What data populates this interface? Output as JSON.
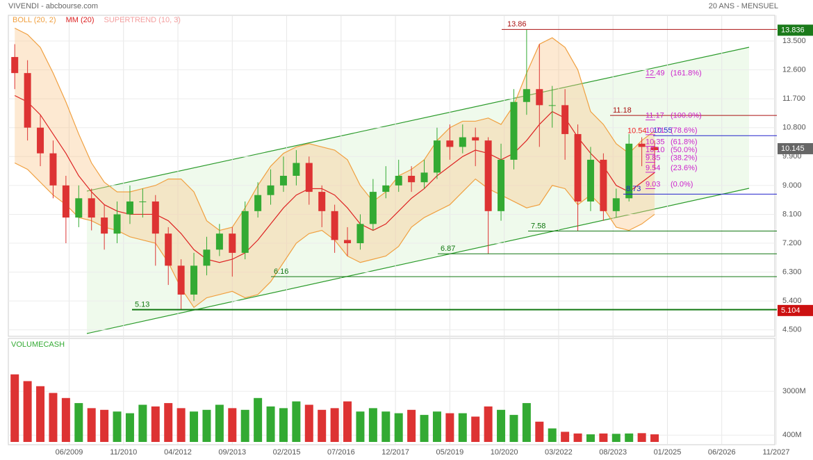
{
  "chart_data": {
    "type": "candlestick",
    "title": "VIVENDI - abcbourse.com",
    "subtitle": "20 ANS - MENSUEL",
    "indicators": [
      {
        "name": "BOLL (20, 2)",
        "color": "#f0a040"
      },
      {
        "name": "MM (20)",
        "color": "#dd2222"
      },
      {
        "name": "SUPERTREND (10, 3)",
        "color": "#f4a0a0"
      }
    ],
    "volume_title": "VOLUMECASH",
    "up_color": "#33aa33",
    "down_color": "#dd3333",
    "x": [
      "01/2008",
      "05/2008",
      "09/2008",
      "01/2009",
      "05/2009",
      "09/2009",
      "01/2010",
      "05/2010",
      "09/2010",
      "01/2011",
      "05/2011",
      "09/2011",
      "01/2012",
      "05/2012",
      "09/2012",
      "01/2013",
      "05/2013",
      "09/2013",
      "01/2014",
      "05/2014",
      "09/2014",
      "01/2015",
      "05/2015",
      "09/2015",
      "01/2016",
      "05/2016",
      "09/2016",
      "01/2017",
      "05/2017",
      "09/2017",
      "01/2018",
      "05/2018",
      "09/2018",
      "01/2019",
      "05/2019",
      "09/2019",
      "01/2020",
      "05/2020",
      "09/2020",
      "01/2021",
      "05/2021",
      "09/2021",
      "01/2022",
      "05/2022",
      "09/2022",
      "01/2023",
      "05/2023",
      "09/2023",
      "01/2024",
      "05/2024",
      "09/2024"
    ],
    "open": [
      13.0,
      12.5,
      10.8,
      10.0,
      9.0,
      8.0,
      8.6,
      8.0,
      7.5,
      8.1,
      8.5,
      8.5,
      7.5,
      6.5,
      5.6,
      6.5,
      7.0,
      7.5,
      6.9,
      8.2,
      8.7,
      9.0,
      9.3,
      9.7,
      8.8,
      8.2,
      7.3,
      7.2,
      7.8,
      8.8,
      9.0,
      9.3,
      9.1,
      9.4,
      10.4,
      10.2,
      10.5,
      10.4,
      8.2,
      9.8,
      11.6,
      12.0,
      11.5,
      11.5,
      10.6,
      8.5,
      9.8,
      8.2,
      8.6,
      10.3,
      10.2
    ],
    "high": [
      13.4,
      12.9,
      11.2,
      10.4,
      9.3,
      9.0,
      8.9,
      8.4,
      8.5,
      9.0,
      8.9,
      8.7,
      7.7,
      6.7,
      6.9,
      7.4,
      7.8,
      7.7,
      8.5,
      9.1,
      9.5,
      9.9,
      10.1,
      9.9,
      9.0,
      8.4,
      7.7,
      8.1,
      9.2,
      9.6,
      9.8,
      9.6,
      9.8,
      10.8,
      10.9,
      10.9,
      10.8,
      10.5,
      10.3,
      12.0,
      13.86,
      13.4,
      12.1,
      12.0,
      10.9,
      10.2,
      10.0,
      8.9,
      10.6,
      10.5,
      10.4
    ],
    "low": [
      12.0,
      10.4,
      9.6,
      8.6,
      7.2,
      7.7,
      7.6,
      7.0,
      7.2,
      7.8,
      8.0,
      6.5,
      5.9,
      5.13,
      5.4,
      6.2,
      6.8,
      6.16,
      6.7,
      8.0,
      8.4,
      8.8,
      9.0,
      8.4,
      7.7,
      6.9,
      6.8,
      7.0,
      7.6,
      8.6,
      8.8,
      8.8,
      8.9,
      9.2,
      9.8,
      10.0,
      9.6,
      6.87,
      7.9,
      9.5,
      11.2,
      10.2,
      10.8,
      9.8,
      7.58,
      8.2,
      7.9,
      8.0,
      8.5,
      9.6,
      9.5
    ],
    "close": [
      12.5,
      10.8,
      10.0,
      9.0,
      8.0,
      8.6,
      8.0,
      7.5,
      8.1,
      8.5,
      8.5,
      7.5,
      6.5,
      5.6,
      6.5,
      7.0,
      7.5,
      6.9,
      8.2,
      8.7,
      9.0,
      9.3,
      9.7,
      8.8,
      8.2,
      7.3,
      7.2,
      7.8,
      8.8,
      9.0,
      9.3,
      9.1,
      9.4,
      10.4,
      10.2,
      10.5,
      10.4,
      8.2,
      9.8,
      11.6,
      12.0,
      11.5,
      11.5,
      10.6,
      8.5,
      9.8,
      8.2,
      8.6,
      10.3,
      10.2,
      10.1
    ],
    "mm": [
      11.8,
      11.6,
      11.2,
      10.6,
      10.0,
      9.3,
      8.8,
      8.4,
      8.2,
      8.1,
      8.1,
      8.1,
      7.9,
      7.5,
      7.0,
      6.7,
      6.6,
      6.7,
      6.9,
      7.3,
      7.8,
      8.3,
      8.7,
      8.9,
      8.9,
      8.7,
      8.3,
      7.8,
      7.6,
      7.8,
      8.2,
      8.6,
      8.9,
      9.3,
      9.6,
      9.9,
      10.1,
      10.0,
      9.8,
      10.0,
      10.4,
      10.9,
      11.3,
      11.1,
      10.5,
      10.0,
      9.6,
      9.0,
      8.8,
      9.1,
      9.4
    ],
    "boll_upper": [
      13.9,
      13.7,
      13.3,
      12.5,
      11.6,
      10.6,
      9.7,
      9.1,
      8.8,
      8.8,
      8.9,
      9.0,
      9.2,
      9.2,
      8.8,
      7.9,
      7.6,
      7.7,
      8.3,
      9.0,
      9.6,
      10.0,
      10.2,
      10.3,
      10.2,
      10.1,
      9.8,
      9.0,
      8.5,
      8.8,
      9.3,
      9.5,
      9.8,
      10.4,
      10.8,
      11.0,
      11.0,
      11.1,
      10.9,
      11.5,
      12.5,
      13.4,
      13.6,
      13.3,
      12.6,
      11.3,
      10.9,
      10.3,
      10.0,
      10.4,
      10.7
    ],
    "boll_lower": [
      9.7,
      9.5,
      9.1,
      8.7,
      8.4,
      8.0,
      7.9,
      7.7,
      7.6,
      7.4,
      7.3,
      7.2,
      6.6,
      5.8,
      5.2,
      5.5,
      5.6,
      5.7,
      5.5,
      5.6,
      6.0,
      6.6,
      7.2,
      7.5,
      7.6,
      7.3,
      6.8,
      6.6,
      6.7,
      6.8,
      7.1,
      7.7,
      8.0,
      8.2,
      8.4,
      8.8,
      9.2,
      8.9,
      8.7,
      8.5,
      8.3,
      8.4,
      9.0,
      8.9,
      8.4,
      8.7,
      8.3,
      7.7,
      7.6,
      7.8,
      8.1
    ],
    "volume": [
      4000,
      3600,
      3300,
      2900,
      2600,
      2300,
      2000,
      1900,
      1800,
      1700,
      2200,
      2100,
      2300,
      2000,
      1800,
      1900,
      2200,
      2000,
      1900,
      2600,
      2100,
      2000,
      2400,
      2200,
      1900,
      2000,
      2400,
      1800,
      2000,
      1800,
      1700,
      1900,
      1600,
      1800,
      1700,
      1700,
      1500,
      2100,
      1900,
      1600,
      2300,
      1200,
      800,
      600,
      500,
      450,
      500,
      480,
      500,
      520,
      450
    ],
    "xlim": [
      "11/2007",
      "11/2027"
    ],
    "xticks": [
      "06/2009",
      "11/2010",
      "04/2012",
      "09/2013",
      "02/2015",
      "07/2016",
      "12/2017",
      "05/2019",
      "10/2020",
      "03/2022",
      "08/2023",
      "01/2025",
      "06/2026",
      "11/2027"
    ],
    "ylim": [
      4.3,
      14.3
    ],
    "yticks": [
      {
        "value": 13.5,
        "label": "13.500"
      },
      {
        "value": 12.6,
        "label": "12.600"
      },
      {
        "value": 11.7,
        "label": "11.700"
      },
      {
        "value": 10.8,
        "label": "10.800"
      },
      {
        "value": 9.9,
        "label": "9.900"
      },
      {
        "value": 9.0,
        "label": "9.000"
      },
      {
        "value": 8.1,
        "label": "8.100"
      },
      {
        "value": 7.2,
        "label": "7.200"
      },
      {
        "value": 6.3,
        "label": "6.300"
      },
      {
        "value": 5.4,
        "label": "5.400"
      },
      {
        "value": 4.5,
        "label": "4.500"
      }
    ],
    "volume_ylim": [
      0,
      5800
    ],
    "volume_yticks": [
      {
        "value": 3000,
        "label": "3000M"
      },
      {
        "value": 400,
        "label": "400M"
      }
    ],
    "grid": true,
    "levels": [
      {
        "value": 13.86,
        "color": "#aa1111"
      },
      {
        "value": 11.18,
        "color": "#aa1111"
      },
      {
        "value": 10.54,
        "color": "#ee2222"
      },
      {
        "value": 10.55,
        "color": "#2222cc"
      },
      {
        "value": 8.73,
        "color": "#2222cc"
      },
      {
        "value": 7.58,
        "color": "#117711"
      },
      {
        "value": 6.87,
        "color": "#117711"
      },
      {
        "value": 6.16,
        "color": "#117711"
      },
      {
        "value": 5.13,
        "color": "#117711"
      }
    ],
    "fibonacci_color": "#cc22cc",
    "fibonacci": [
      {
        "value": 12.49,
        "label": "12.49",
        "pct": "(161.8%)"
      },
      {
        "value": 11.17,
        "label": "11.17",
        "pct": "(100.0%)"
      },
      {
        "value": 10.71,
        "label": "10.71",
        "pct": "(78.6%)"
      },
      {
        "value": 10.35,
        "label": "10.35",
        "pct": "(61.8%)"
      },
      {
        "value": 10.1,
        "label": "10.10",
        "pct": "(50.0%)"
      },
      {
        "value": 9.85,
        "label": "9.85",
        "pct": "(38.2%)"
      },
      {
        "value": 9.54,
        "label": "9.54",
        "pct": "(23.6%)"
      },
      {
        "value": 9.03,
        "label": "9.03",
        "pct": "(0.0%)"
      }
    ],
    "price_tags": [
      {
        "value": 13.836,
        "color": "#1a7a1a"
      },
      {
        "value": 10.145,
        "color": "#666666"
      },
      {
        "value": 5.104,
        "color": "#cc1111"
      }
    ]
  }
}
